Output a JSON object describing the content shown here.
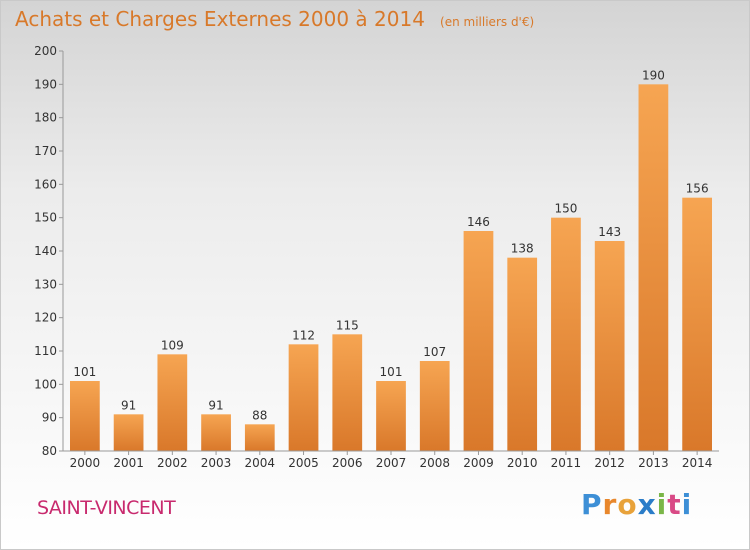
{
  "chart_data": {
    "type": "bar",
    "title": "Achats et Charges Externes 2000 à 2014",
    "subtitle": "(en milliers d'€)",
    "categories": [
      "2000",
      "2001",
      "2002",
      "2003",
      "2004",
      "2005",
      "2006",
      "2007",
      "2008",
      "2009",
      "2010",
      "2011",
      "2012",
      "2013",
      "2014"
    ],
    "values": [
      101,
      91,
      109,
      91,
      88,
      112,
      115,
      101,
      107,
      146,
      138,
      150,
      143,
      190,
      156
    ],
    "ylim": [
      80,
      200
    ],
    "yticks": [
      80,
      90,
      100,
      110,
      120,
      130,
      140,
      150,
      160,
      170,
      180,
      190,
      200
    ],
    "xlabel": "",
    "ylabel": "",
    "grid": false,
    "bar_color_top": "#f6a552",
    "bar_color_bottom": "#d9782a"
  },
  "commune": "SAINT-VINCENT",
  "brand": "Proxiti"
}
